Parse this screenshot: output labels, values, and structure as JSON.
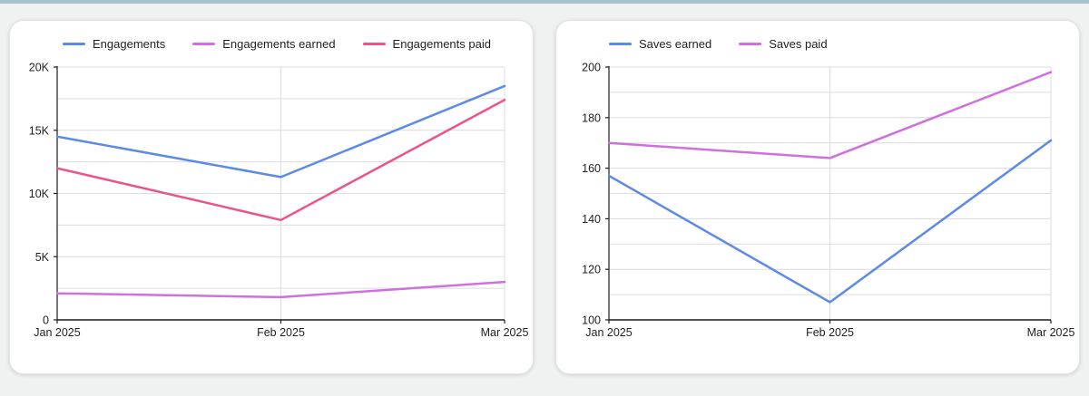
{
  "page": {
    "background_color": "#f0f1f1",
    "top_bar_color": "#a9c1cb"
  },
  "chart_data": [
    {
      "type": "line",
      "title": "",
      "categories": [
        "Jan 2025",
        "Feb 2025",
        "Mar 2025"
      ],
      "series": [
        {
          "name": "Engagements",
          "color": "#5c8ae8",
          "values": [
            14500,
            11300,
            18500
          ]
        },
        {
          "name": "Engagements earned",
          "color": "#d06fe0",
          "values": [
            2100,
            1800,
            3000
          ]
        },
        {
          "name": "Engagements paid",
          "color": "#ec5487",
          "values": [
            12000,
            7900,
            17400
          ]
        }
      ],
      "ylim": [
        0,
        20000
      ],
      "grid_step": 2500,
      "y_ticks": [
        {
          "value": 0,
          "label": "0"
        },
        {
          "value": 5000,
          "label": "5K"
        },
        {
          "value": 10000,
          "label": "10K"
        },
        {
          "value": 15000,
          "label": "15K"
        },
        {
          "value": 20000,
          "label": "20K"
        }
      ],
      "legend_position": "top",
      "grid": true,
      "xlabel": "",
      "ylabel": ""
    },
    {
      "type": "line",
      "title": "",
      "categories": [
        "Jan 2025",
        "Feb 2025",
        "Mar 2025"
      ],
      "series": [
        {
          "name": "Saves earned",
          "color": "#5c8ae8",
          "values": [
            157,
            107,
            171
          ]
        },
        {
          "name": "Saves paid",
          "color": "#d06fe0",
          "values": [
            170,
            164,
            198
          ]
        }
      ],
      "ylim": [
        100,
        200
      ],
      "grid_step": 10,
      "y_ticks": [
        {
          "value": 100,
          "label": "100"
        },
        {
          "value": 120,
          "label": "120"
        },
        {
          "value": 140,
          "label": "140"
        },
        {
          "value": 160,
          "label": "160"
        },
        {
          "value": 180,
          "label": "180"
        },
        {
          "value": 200,
          "label": "200"
        }
      ],
      "legend_position": "top",
      "grid": true,
      "xlabel": "",
      "ylabel": ""
    }
  ],
  "style": {
    "axis_color": "#1c1c1c",
    "grid_color": "#dadce0",
    "text_color": "#1f1f1f"
  }
}
